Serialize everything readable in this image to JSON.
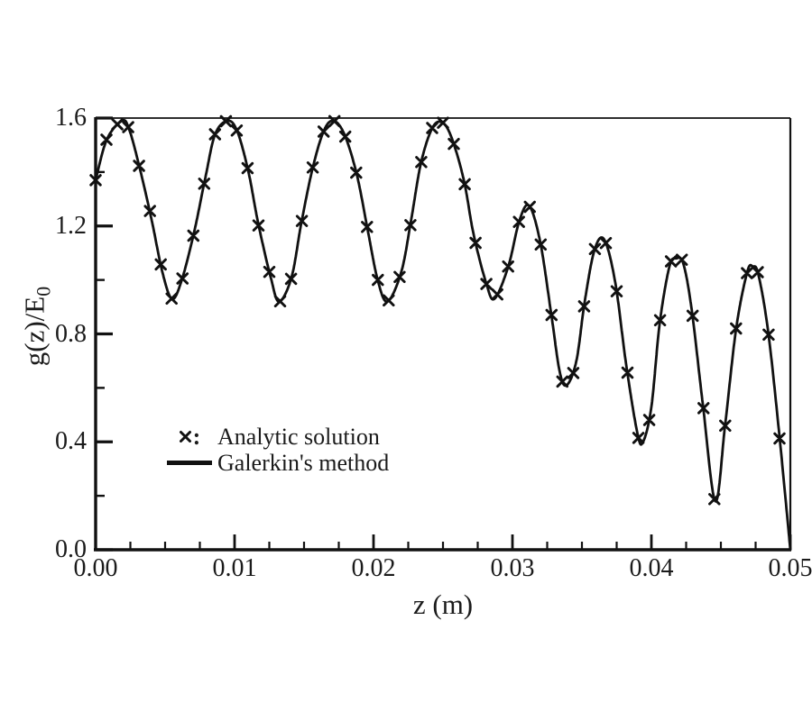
{
  "figure": {
    "background": "#ffffff",
    "ink_color": "#111111"
  },
  "chart_data": {
    "type": "line",
    "title": "",
    "xlabel": "z (m)",
    "ylabel": "g(z)/E0",
    "ylabel_prefix": "g(z)/E",
    "ylabel_sub": "0",
    "xlim": [
      0,
      0.05
    ],
    "ylim": [
      0,
      1.6
    ],
    "grid": false,
    "x_major_ticks": [
      {
        "v": 0.0,
        "label": "0.00"
      },
      {
        "v": 0.01,
        "label": "0.01"
      },
      {
        "v": 0.02,
        "label": "0.02"
      },
      {
        "v": 0.03,
        "label": "0.03"
      },
      {
        "v": 0.04,
        "label": "0.04"
      },
      {
        "v": 0.05,
        "label": "0.05"
      }
    ],
    "x_minor_step": 0.0025,
    "y_major_ticks": [
      {
        "v": 0.0,
        "label": "0.0"
      },
      {
        "v": 0.4,
        "label": "0.4"
      },
      {
        "v": 0.8,
        "label": "0.8"
      },
      {
        "v": 1.2,
        "label": "1.2"
      },
      {
        "v": 1.6,
        "label": "1.6"
      }
    ],
    "y_minor_step": 0.2,
    "legend": {
      "position": "inside-lower-left",
      "items": [
        {
          "type": "marker",
          "symbol": "x-cross",
          "separator": ":",
          "label": "Analytic solution"
        },
        {
          "type": "line",
          "label": "Galerkin's method"
        }
      ]
    },
    "series": [
      {
        "name": "Galerkin's method",
        "type": "line",
        "points": [
          [
            0.0,
            1.37
          ],
          [
            0.0008,
            1.52
          ],
          [
            0.0019,
            1.59
          ],
          [
            0.0024,
            1.56
          ],
          [
            0.0031,
            1.43
          ],
          [
            0.004,
            1.23
          ],
          [
            0.0048,
            1.03
          ],
          [
            0.0055,
            0.93
          ],
          [
            0.0062,
            1.0
          ],
          [
            0.0071,
            1.18
          ],
          [
            0.0079,
            1.38
          ],
          [
            0.0086,
            1.54
          ],
          [
            0.0095,
            1.59
          ],
          [
            0.0102,
            1.55
          ],
          [
            0.011,
            1.4
          ],
          [
            0.0117,
            1.21
          ],
          [
            0.0126,
            1.01
          ],
          [
            0.0132,
            0.92
          ],
          [
            0.0141,
            1.01
          ],
          [
            0.0148,
            1.21
          ],
          [
            0.0156,
            1.41
          ],
          [
            0.0164,
            1.55
          ],
          [
            0.0171,
            1.59
          ],
          [
            0.0179,
            1.54
          ],
          [
            0.0188,
            1.39
          ],
          [
            0.0196,
            1.18
          ],
          [
            0.0203,
            1.0
          ],
          [
            0.021,
            0.92
          ],
          [
            0.022,
            1.03
          ],
          [
            0.0227,
            1.22
          ],
          [
            0.0234,
            1.43
          ],
          [
            0.0242,
            1.56
          ],
          [
            0.0249,
            1.585
          ],
          [
            0.0256,
            1.53
          ],
          [
            0.0265,
            1.37
          ],
          [
            0.0272,
            1.17
          ],
          [
            0.0281,
            0.99
          ],
          [
            0.0287,
            0.93
          ],
          [
            0.0297,
            1.05
          ],
          [
            0.0305,
            1.22
          ],
          [
            0.0312,
            1.275
          ],
          [
            0.032,
            1.14
          ],
          [
            0.0328,
            0.87
          ],
          [
            0.0334,
            0.66
          ],
          [
            0.0339,
            0.61
          ],
          [
            0.0346,
            0.7
          ],
          [
            0.0352,
            0.92
          ],
          [
            0.0359,
            1.11
          ],
          [
            0.0366,
            1.15
          ],
          [
            0.0374,
            0.99
          ],
          [
            0.0382,
            0.68
          ],
          [
            0.039,
            0.43
          ],
          [
            0.0394,
            0.4
          ],
          [
            0.04,
            0.53
          ],
          [
            0.0406,
            0.84
          ],
          [
            0.0413,
            1.05
          ],
          [
            0.0418,
            1.08
          ],
          [
            0.0423,
            1.06
          ],
          [
            0.0429,
            0.89
          ],
          [
            0.0437,
            0.54
          ],
          [
            0.0446,
            0.18
          ],
          [
            0.0453,
            0.46
          ],
          [
            0.0461,
            0.82
          ],
          [
            0.0469,
            1.03
          ],
          [
            0.0473,
            1.05
          ],
          [
            0.0477,
            1.02
          ],
          [
            0.0484,
            0.81
          ],
          [
            0.0492,
            0.43
          ],
          [
            0.05,
            0.0
          ]
        ]
      },
      {
        "name": "Analytic solution",
        "type": "markers",
        "marker": "x-cross",
        "on_curve": true,
        "x_start": 0,
        "x_step": 0.00078125,
        "count": 64
      }
    ]
  }
}
